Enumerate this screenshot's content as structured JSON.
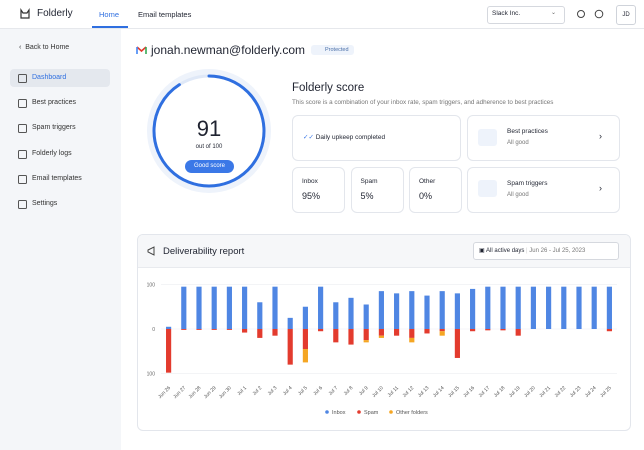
{
  "header": {
    "logo": "Folderly",
    "tabs": [
      "Home",
      "Email templates"
    ],
    "workspace": "Slack Inc.",
    "avatar": "JD"
  },
  "sidebar": {
    "back": "Back to Home",
    "items": [
      "Dashboard",
      "Best practices",
      "Spam triggers",
      "Folderly logs",
      "Email templates",
      "Settings"
    ]
  },
  "account": {
    "email": "jonah.newman@folderly.com",
    "badge": "Protected"
  },
  "score": {
    "value": "91",
    "caption": "out of 100",
    "rating": "Good score",
    "title": "Folderly score",
    "subtitle": "This score is a combination of your inbox rate, spam triggers, and adherence to best practices"
  },
  "cards": {
    "upkeep": "Daily upkeep completed",
    "best_practices": {
      "title": "Best practices",
      "status": "All good"
    },
    "spam_triggers": {
      "title": "Spam triggers",
      "status": "All good"
    },
    "rates": [
      {
        "label": "Inbox",
        "value": "95%"
      },
      {
        "label": "Spam",
        "value": "5%"
      },
      {
        "label": "Other",
        "value": "0%"
      }
    ]
  },
  "chart_data": {
    "type": "bar",
    "stacked": true,
    "title": "Deliverability report",
    "filter": "All active days",
    "date_range": "Jun 26 - Jul 25, 2023",
    "categories": [
      "Jun 26",
      "Jun 27",
      "Jun 28",
      "Jun 29",
      "Jun 30",
      "Jul 1",
      "Jul 2",
      "Jul 3",
      "Jul 4",
      "Jul 5",
      "Jul 6",
      "Jul 7",
      "Jul 8",
      "Jul 9",
      "Jul 10",
      "Jul 11",
      "Jul 12",
      "Jul 13",
      "Jul 14",
      "Jul 15",
      "Jul 16",
      "Jul 17",
      "Jul 18",
      "Jul 19",
      "Jul 20",
      "Jul 21",
      "Jul 22",
      "Jul 23",
      "Jul 24",
      "Jul 25"
    ],
    "series": [
      {
        "name": "Inbox",
        "color": "#4f86e3",
        "values": [
          5,
          95,
          95,
          95,
          95,
          95,
          60,
          95,
          25,
          50,
          95,
          60,
          70,
          55,
          85,
          80,
          85,
          75,
          85,
          80,
          90,
          95,
          95,
          95,
          95,
          95,
          95,
          95,
          95,
          95
        ]
      },
      {
        "name": "Spam",
        "color": "#e33b2e",
        "values": [
          -98,
          -2,
          -2,
          -2,
          -2,
          -8,
          -20,
          -15,
          -80,
          -45,
          -5,
          -30,
          -35,
          -25,
          -15,
          -15,
          -20,
          -10,
          -5,
          -65,
          -5,
          -3,
          -3,
          -15,
          0,
          0,
          0,
          0,
          0,
          -5
        ]
      },
      {
        "name": "Other folders",
        "color": "#f5a623",
        "values": [
          0,
          0,
          0,
          0,
          0,
          0,
          0,
          0,
          0,
          -30,
          0,
          0,
          0,
          -5,
          -5,
          0,
          -10,
          0,
          -10,
          0,
          0,
          0,
          0,
          0,
          0,
          0,
          0,
          0,
          0,
          0
        ]
      }
    ],
    "ylim": [
      -110,
      110
    ],
    "yticks": [
      100,
      0,
      {
        "value": -100,
        "label": "100"
      }
    ],
    "grid": true
  }
}
